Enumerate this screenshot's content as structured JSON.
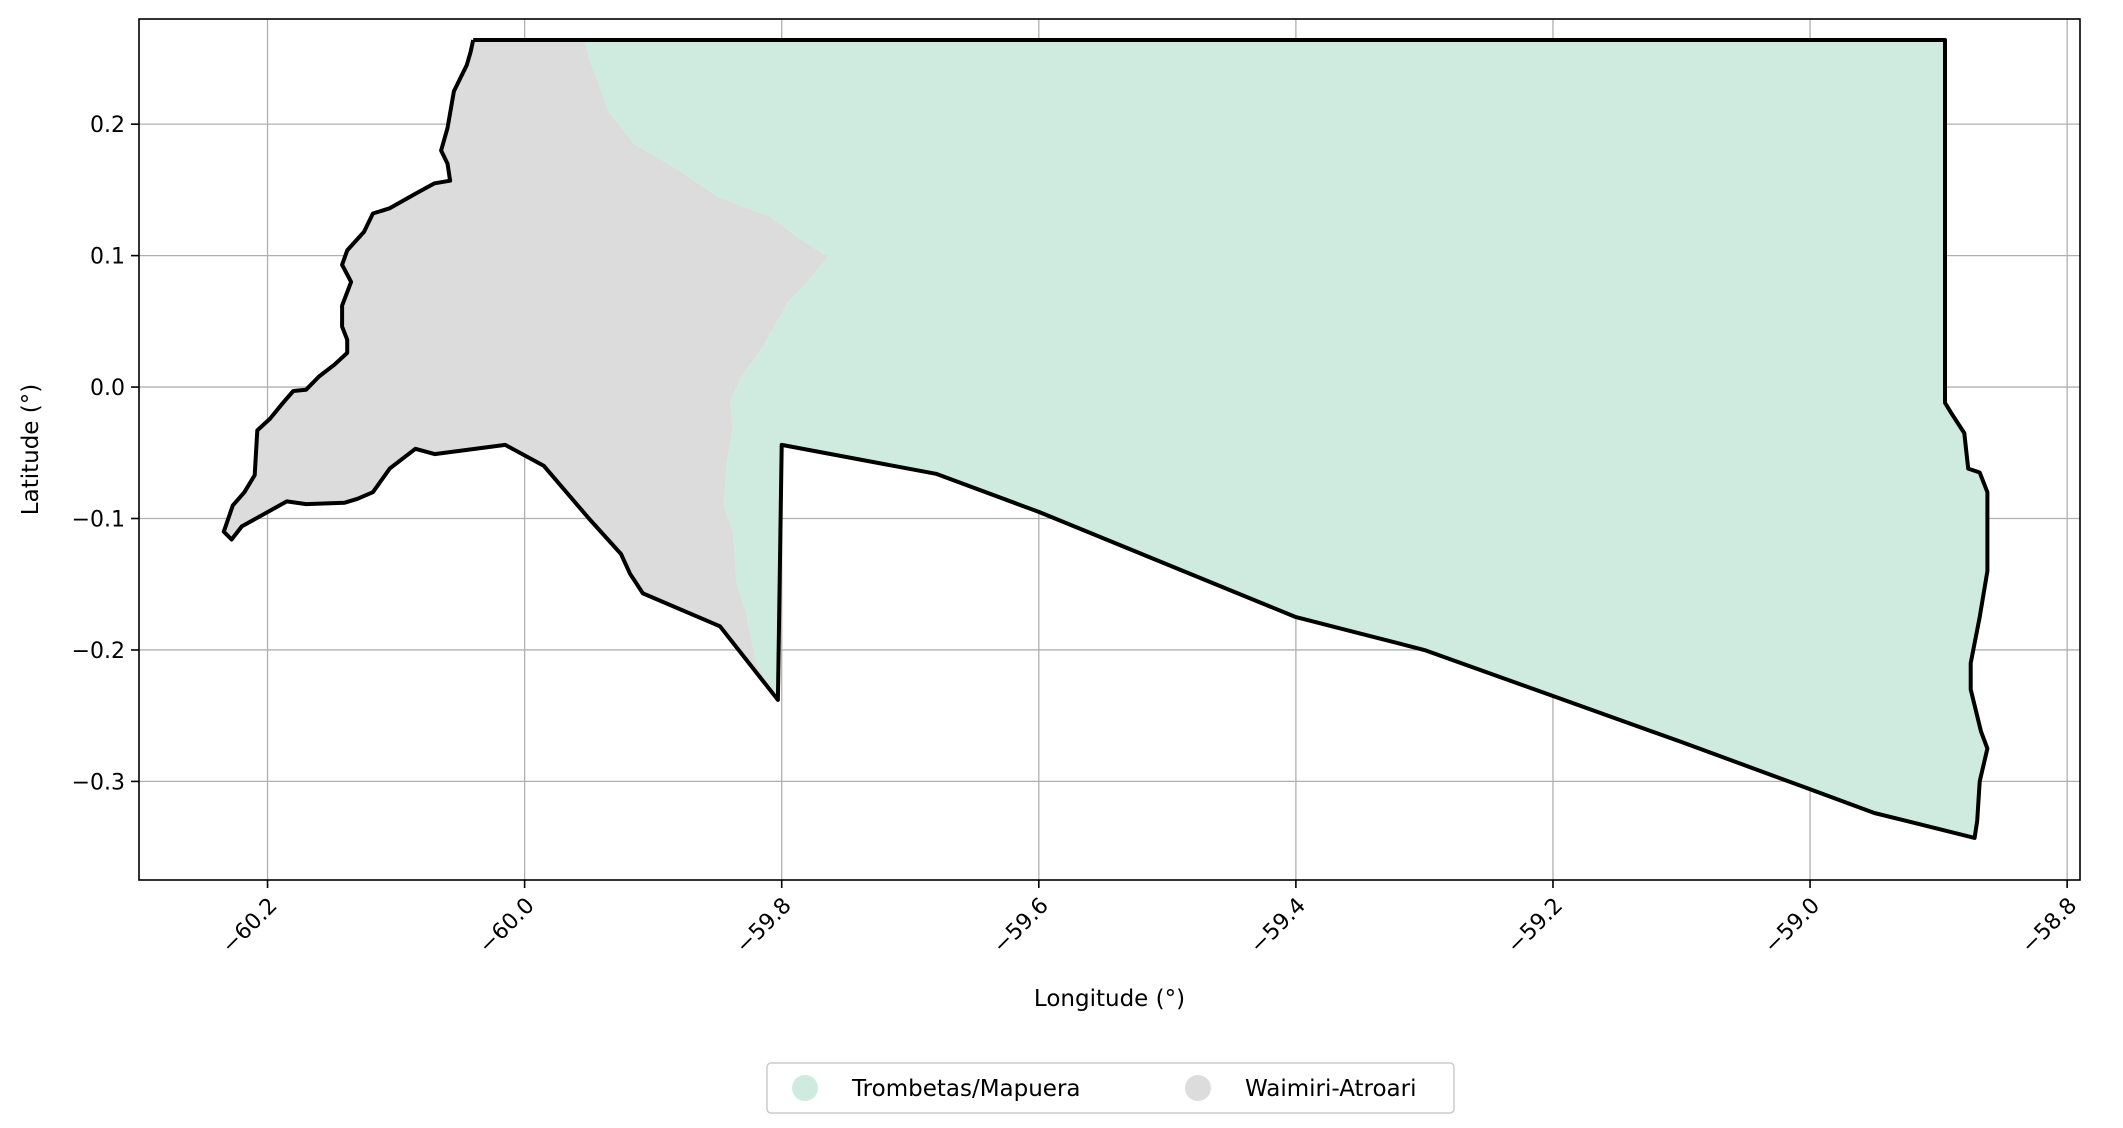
{
  "chart_data": {
    "type": "map",
    "xlabel": "Longitude (°)",
    "ylabel": "Latitude (°)",
    "xlim": [
      -60.3,
      -58.79
    ],
    "ylim": [
      -0.375,
      0.28
    ],
    "xticks": [
      -60.2,
      -60.0,
      -59.8,
      -59.6,
      -59.4,
      -59.2,
      -59.0,
      -58.8
    ],
    "xtick_labels": [
      "−60.2",
      "−60.0",
      "−59.8",
      "−59.6",
      "−59.4",
      "−59.2",
      "−59.0",
      "−58.8"
    ],
    "yticks": [
      0.2,
      0.1,
      0.0,
      -0.1,
      -0.2,
      -0.3
    ],
    "ytick_labels": [
      "0.2",
      "0.1",
      "0.0",
      "−0.1",
      "−0.2",
      "−0.3"
    ],
    "grid": true,
    "legend_position": "bottom-center",
    "regions": [
      {
        "name": "Trombetas/Mapuera",
        "color": "#cfebdf",
        "polygon": [
          [
            -59.953,
            0.264
          ],
          [
            -58.895,
            0.264
          ],
          [
            -58.895,
            -0.012
          ],
          [
            -58.89,
            -0.02
          ],
          [
            -58.88,
            -0.035
          ],
          [
            -58.877,
            -0.062
          ],
          [
            -58.868,
            -0.065
          ],
          [
            -58.862,
            -0.08
          ],
          [
            -58.862,
            -0.14
          ],
          [
            -58.868,
            -0.175
          ],
          [
            -58.875,
            -0.21
          ],
          [
            -58.875,
            -0.23
          ],
          [
            -58.867,
            -0.262
          ],
          [
            -58.862,
            -0.275
          ],
          [
            -58.868,
            -0.3
          ],
          [
            -58.87,
            -0.33
          ],
          [
            -58.872,
            -0.343
          ],
          [
            -58.95,
            -0.324
          ],
          [
            -59.0,
            -0.306
          ],
          [
            -59.1,
            -0.27
          ],
          [
            -59.2,
            -0.235
          ],
          [
            -59.3,
            -0.2
          ],
          [
            -59.4,
            -0.175
          ],
          [
            -59.5,
            -0.135
          ],
          [
            -59.6,
            -0.095
          ],
          [
            -59.68,
            -0.066
          ],
          [
            -59.8,
            -0.044
          ],
          [
            -59.803,
            -0.238
          ],
          [
            -59.82,
            -0.21
          ],
          [
            -59.828,
            -0.17
          ],
          [
            -59.835,
            -0.15
          ],
          [
            -59.838,
            -0.11
          ],
          [
            -59.845,
            -0.09
          ],
          [
            -59.843,
            -0.06
          ],
          [
            -59.838,
            -0.03
          ],
          [
            -59.84,
            -0.01
          ],
          [
            -59.83,
            0.01
          ],
          [
            -59.815,
            0.03
          ],
          [
            -59.795,
            0.065
          ],
          [
            -59.78,
            0.08
          ],
          [
            -59.764,
            0.099
          ],
          [
            -59.785,
            0.112
          ],
          [
            -59.81,
            0.13
          ],
          [
            -59.85,
            0.145
          ],
          [
            -59.88,
            0.165
          ],
          [
            -59.915,
            0.185
          ],
          [
            -59.935,
            0.21
          ],
          [
            -59.942,
            0.23
          ],
          [
            -59.95,
            0.25
          ]
        ]
      },
      {
        "name": "Waimiri-Atroari",
        "color": "#dcdcdc",
        "polygon": [
          [
            -60.04,
            0.264
          ],
          [
            -59.953,
            0.264
          ],
          [
            -59.95,
            0.25
          ],
          [
            -59.942,
            0.23
          ],
          [
            -59.935,
            0.21
          ],
          [
            -59.915,
            0.185
          ],
          [
            -59.88,
            0.165
          ],
          [
            -59.85,
            0.145
          ],
          [
            -59.81,
            0.13
          ],
          [
            -59.785,
            0.112
          ],
          [
            -59.764,
            0.099
          ],
          [
            -59.78,
            0.08
          ],
          [
            -59.795,
            0.065
          ],
          [
            -59.815,
            0.03
          ],
          [
            -59.83,
            0.01
          ],
          [
            -59.84,
            -0.01
          ],
          [
            -59.838,
            -0.03
          ],
          [
            -59.843,
            -0.06
          ],
          [
            -59.845,
            -0.09
          ],
          [
            -59.838,
            -0.11
          ],
          [
            -59.835,
            -0.15
          ],
          [
            -59.828,
            -0.17
          ],
          [
            -59.82,
            -0.21
          ],
          [
            -59.803,
            -0.238
          ],
          [
            -59.848,
            -0.182
          ],
          [
            -59.908,
            -0.157
          ],
          [
            -59.918,
            -0.142
          ],
          [
            -59.925,
            -0.127
          ],
          [
            -59.95,
            -0.1
          ],
          [
            -59.985,
            -0.06
          ],
          [
            -60.015,
            -0.044
          ],
          [
            -60.07,
            -0.051
          ],
          [
            -60.085,
            -0.047
          ],
          [
            -60.105,
            -0.062
          ],
          [
            -60.118,
            -0.08
          ],
          [
            -60.13,
            -0.085
          ],
          [
            -60.14,
            -0.088
          ],
          [
            -60.17,
            -0.089
          ],
          [
            -60.185,
            -0.087
          ],
          [
            -60.22,
            -0.106
          ],
          [
            -60.228,
            -0.116
          ],
          [
            -60.234,
            -0.11
          ],
          [
            -60.227,
            -0.09
          ],
          [
            -60.218,
            -0.08
          ],
          [
            -60.21,
            -0.067
          ],
          [
            -60.208,
            -0.033
          ],
          [
            -60.198,
            -0.024
          ],
          [
            -60.188,
            -0.012
          ],
          [
            -60.18,
            -0.003
          ],
          [
            -60.17,
            -0.002
          ],
          [
            -60.16,
            0.008
          ],
          [
            -60.148,
            0.017
          ],
          [
            -60.138,
            0.026
          ],
          [
            -60.138,
            0.036
          ],
          [
            -60.142,
            0.046
          ],
          [
            -60.142,
            0.062
          ],
          [
            -60.135,
            0.08
          ],
          [
            -60.142,
            0.093
          ],
          [
            -60.138,
            0.104
          ],
          [
            -60.125,
            0.118
          ],
          [
            -60.118,
            0.132
          ],
          [
            -60.105,
            0.136
          ],
          [
            -60.085,
            0.147
          ],
          [
            -60.07,
            0.155
          ],
          [
            -60.058,
            0.157
          ],
          [
            -60.06,
            0.17
          ],
          [
            -60.065,
            0.18
          ],
          [
            -60.06,
            0.197
          ],
          [
            -60.055,
            0.225
          ],
          [
            -60.045,
            0.245
          ],
          [
            -60.042,
            0.255
          ]
        ]
      }
    ],
    "outline": [
      [
        -60.04,
        0.264
      ],
      [
        -58.895,
        0.264
      ],
      [
        -58.895,
        -0.012
      ],
      [
        -58.89,
        -0.02
      ],
      [
        -58.88,
        -0.035
      ],
      [
        -58.877,
        -0.062
      ],
      [
        -58.868,
        -0.065
      ],
      [
        -58.862,
        -0.08
      ],
      [
        -58.862,
        -0.14
      ],
      [
        -58.868,
        -0.175
      ],
      [
        -58.875,
        -0.21
      ],
      [
        -58.875,
        -0.23
      ],
      [
        -58.867,
        -0.262
      ],
      [
        -58.862,
        -0.275
      ],
      [
        -58.868,
        -0.3
      ],
      [
        -58.87,
        -0.33
      ],
      [
        -58.872,
        -0.343
      ],
      [
        -58.95,
        -0.324
      ],
      [
        -59.0,
        -0.306
      ],
      [
        -59.1,
        -0.27
      ],
      [
        -59.2,
        -0.235
      ],
      [
        -59.3,
        -0.2
      ],
      [
        -59.4,
        -0.175
      ],
      [
        -59.5,
        -0.135
      ],
      [
        -59.6,
        -0.095
      ],
      [
        -59.68,
        -0.066
      ],
      [
        -59.8,
        -0.044
      ],
      [
        -59.803,
        -0.238
      ],
      [
        -59.848,
        -0.182
      ],
      [
        -59.908,
        -0.157
      ],
      [
        -59.918,
        -0.142
      ],
      [
        -59.925,
        -0.127
      ],
      [
        -59.95,
        -0.1
      ],
      [
        -59.985,
        -0.06
      ],
      [
        -60.015,
        -0.044
      ],
      [
        -60.07,
        -0.051
      ],
      [
        -60.085,
        -0.047
      ],
      [
        -60.105,
        -0.062
      ],
      [
        -60.118,
        -0.08
      ],
      [
        -60.13,
        -0.085
      ],
      [
        -60.14,
        -0.088
      ],
      [
        -60.17,
        -0.089
      ],
      [
        -60.185,
        -0.087
      ],
      [
        -60.22,
        -0.106
      ],
      [
        -60.228,
        -0.116
      ],
      [
        -60.234,
        -0.11
      ],
      [
        -60.227,
        -0.09
      ],
      [
        -60.218,
        -0.08
      ],
      [
        -60.21,
        -0.067
      ],
      [
        -60.208,
        -0.033
      ],
      [
        -60.198,
        -0.024
      ],
      [
        -60.188,
        -0.012
      ],
      [
        -60.18,
        -0.003
      ],
      [
        -60.17,
        -0.002
      ],
      [
        -60.16,
        0.008
      ],
      [
        -60.148,
        0.017
      ],
      [
        -60.138,
        0.026
      ],
      [
        -60.138,
        0.036
      ],
      [
        -60.142,
        0.046
      ],
      [
        -60.142,
        0.062
      ],
      [
        -60.135,
        0.08
      ],
      [
        -60.142,
        0.093
      ],
      [
        -60.138,
        0.104
      ],
      [
        -60.125,
        0.118
      ],
      [
        -60.118,
        0.132
      ],
      [
        -60.105,
        0.136
      ],
      [
        -60.085,
        0.147
      ],
      [
        -60.07,
        0.155
      ],
      [
        -60.058,
        0.157
      ],
      [
        -60.06,
        0.17
      ],
      [
        -60.065,
        0.18
      ],
      [
        -60.06,
        0.197
      ],
      [
        -60.055,
        0.225
      ],
      [
        -60.045,
        0.245
      ],
      [
        -60.042,
        0.255
      ],
      [
        -60.04,
        0.264
      ]
    ],
    "outline_color": "#000000",
    "legend": [
      {
        "label": "Trombetas/Mapuera",
        "color": "#cfebdf"
      },
      {
        "label": "Waimiri-Atroari",
        "color": "#dcdcdc"
      }
    ]
  }
}
